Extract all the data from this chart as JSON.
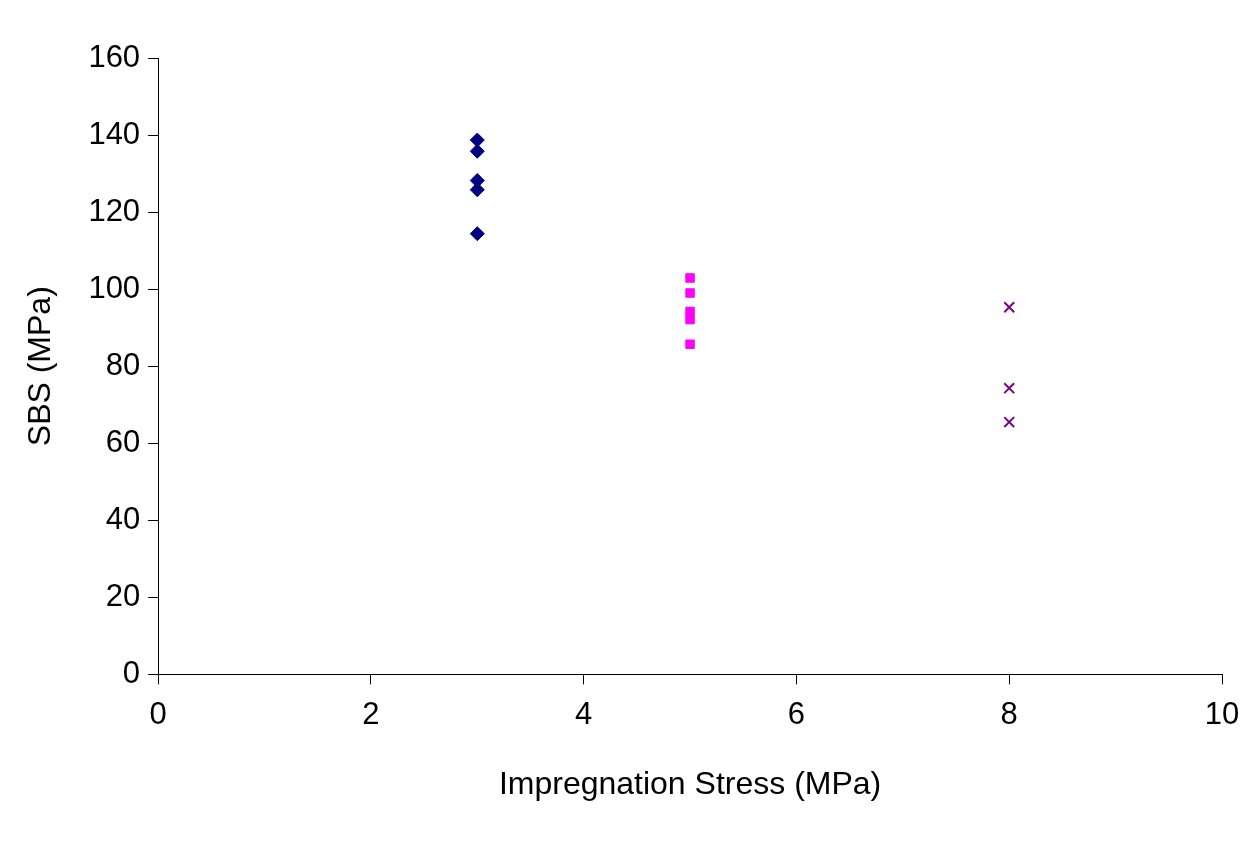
{
  "chart_data": {
    "type": "scatter",
    "xlabel": "Impregnation Stress (MPa)",
    "ylabel": "SBS (MPa)",
    "xlim": [
      0,
      10
    ],
    "xticks": [
      0,
      2,
      4,
      6,
      8,
      10
    ],
    "ylim": [
      0,
      160
    ],
    "yticks": [
      0,
      20,
      40,
      60,
      80,
      100,
      120,
      140,
      160
    ],
    "grid": false,
    "legend": false,
    "series": [
      {
        "color": "#000080",
        "marker": "diamond",
        "x": [
          3,
          3,
          3,
          3,
          3
        ],
        "values": [
          138.7,
          135.8,
          128.2,
          125.8,
          114.4
        ]
      },
      {
        "color": "#ff00ff",
        "marker": "square",
        "x": [
          5,
          5,
          5,
          5,
          5
        ],
        "values": [
          102.9,
          99.0,
          94.2,
          92.1,
          85.7
        ]
      },
      {
        "color": "#800080",
        "marker": "cross",
        "x": [
          8,
          8,
          8
        ],
        "values": [
          95.3,
          74.3,
          65.5
        ]
      }
    ]
  }
}
